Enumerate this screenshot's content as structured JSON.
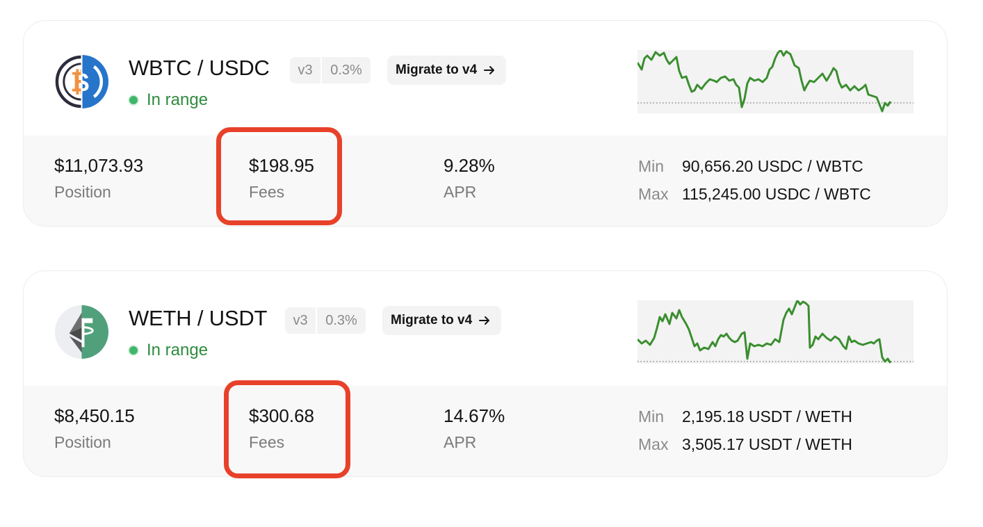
{
  "positions": [
    {
      "pair": "WBTC / USDC",
      "version": "v3",
      "fee_tier": "0.3%",
      "migrate_label": "Migrate to v4",
      "status": "In range",
      "position_value": "$11,073.93",
      "position_label": "Position",
      "fees_value": "$198.95",
      "fees_label": "Fees",
      "apr_value": "9.28%",
      "apr_label": "APR",
      "min_label": "Min",
      "min_value": "90,656.20 USDC / WBTC",
      "max_label": "Max",
      "max_value": "115,245.00 USDC / WBTC",
      "logo_icons": [
        "bitcoin-icon",
        "usdc-icon"
      ],
      "colors": {
        "token_a": "#f7931a",
        "token_b": "#2775ca"
      }
    },
    {
      "pair": "WETH / USDT",
      "version": "v3",
      "fee_tier": "0.3%",
      "migrate_label": "Migrate to v4",
      "status": "In range",
      "position_value": "$8,450.15",
      "position_label": "Position",
      "fees_value": "$300.68",
      "fees_label": "Fees",
      "apr_value": "14.67%",
      "apr_label": "APR",
      "min_label": "Min",
      "min_value": "2,195.18 USDT / WETH",
      "max_label": "Max",
      "max_value": "3,505.17 USDT / WETH",
      "logo_icons": [
        "ethereum-icon",
        "tether-icon"
      ],
      "colors": {
        "token_a": "#627eea",
        "token_b": "#50af95"
      }
    }
  ],
  "colors": {
    "in_range": "#2e8b3e",
    "sparkline": "#3a8e2f",
    "highlight": "#e8412a"
  },
  "highlighted_field": "fees"
}
